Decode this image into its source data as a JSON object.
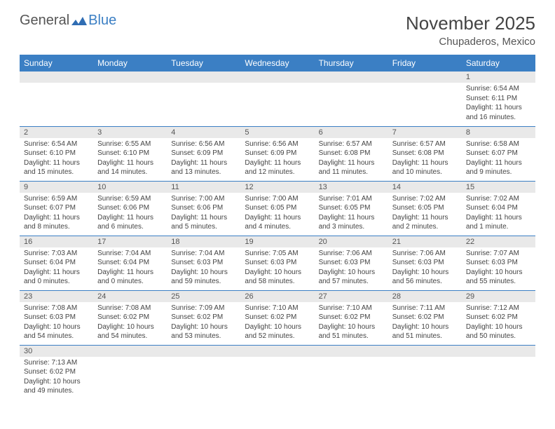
{
  "logo": {
    "general": "General",
    "blue": "Blue"
  },
  "title": "November 2025",
  "location": "Chupaderos, Mexico",
  "colors": {
    "header_bg": "#3b7fc4",
    "header_fg": "#ffffff",
    "daynum_bg": "#e9e9e9",
    "rule": "#3b7fc4",
    "text": "#444444"
  },
  "day_headers": [
    "Sunday",
    "Monday",
    "Tuesday",
    "Wednesday",
    "Thursday",
    "Friday",
    "Saturday"
  ],
  "weeks": [
    [
      {
        "n": "",
        "sr": "",
        "ss": "",
        "dl": ""
      },
      {
        "n": "",
        "sr": "",
        "ss": "",
        "dl": ""
      },
      {
        "n": "",
        "sr": "",
        "ss": "",
        "dl": ""
      },
      {
        "n": "",
        "sr": "",
        "ss": "",
        "dl": ""
      },
      {
        "n": "",
        "sr": "",
        "ss": "",
        "dl": ""
      },
      {
        "n": "",
        "sr": "",
        "ss": "",
        "dl": ""
      },
      {
        "n": "1",
        "sr": "Sunrise: 6:54 AM",
        "ss": "Sunset: 6:11 PM",
        "dl": "Daylight: 11 hours and 16 minutes."
      }
    ],
    [
      {
        "n": "2",
        "sr": "Sunrise: 6:54 AM",
        "ss": "Sunset: 6:10 PM",
        "dl": "Daylight: 11 hours and 15 minutes."
      },
      {
        "n": "3",
        "sr": "Sunrise: 6:55 AM",
        "ss": "Sunset: 6:10 PM",
        "dl": "Daylight: 11 hours and 14 minutes."
      },
      {
        "n": "4",
        "sr": "Sunrise: 6:56 AM",
        "ss": "Sunset: 6:09 PM",
        "dl": "Daylight: 11 hours and 13 minutes."
      },
      {
        "n": "5",
        "sr": "Sunrise: 6:56 AM",
        "ss": "Sunset: 6:09 PM",
        "dl": "Daylight: 11 hours and 12 minutes."
      },
      {
        "n": "6",
        "sr": "Sunrise: 6:57 AM",
        "ss": "Sunset: 6:08 PM",
        "dl": "Daylight: 11 hours and 11 minutes."
      },
      {
        "n": "7",
        "sr": "Sunrise: 6:57 AM",
        "ss": "Sunset: 6:08 PM",
        "dl": "Daylight: 11 hours and 10 minutes."
      },
      {
        "n": "8",
        "sr": "Sunrise: 6:58 AM",
        "ss": "Sunset: 6:07 PM",
        "dl": "Daylight: 11 hours and 9 minutes."
      }
    ],
    [
      {
        "n": "9",
        "sr": "Sunrise: 6:59 AM",
        "ss": "Sunset: 6:07 PM",
        "dl": "Daylight: 11 hours and 8 minutes."
      },
      {
        "n": "10",
        "sr": "Sunrise: 6:59 AM",
        "ss": "Sunset: 6:06 PM",
        "dl": "Daylight: 11 hours and 6 minutes."
      },
      {
        "n": "11",
        "sr": "Sunrise: 7:00 AM",
        "ss": "Sunset: 6:06 PM",
        "dl": "Daylight: 11 hours and 5 minutes."
      },
      {
        "n": "12",
        "sr": "Sunrise: 7:00 AM",
        "ss": "Sunset: 6:05 PM",
        "dl": "Daylight: 11 hours and 4 minutes."
      },
      {
        "n": "13",
        "sr": "Sunrise: 7:01 AM",
        "ss": "Sunset: 6:05 PM",
        "dl": "Daylight: 11 hours and 3 minutes."
      },
      {
        "n": "14",
        "sr": "Sunrise: 7:02 AM",
        "ss": "Sunset: 6:05 PM",
        "dl": "Daylight: 11 hours and 2 minutes."
      },
      {
        "n": "15",
        "sr": "Sunrise: 7:02 AM",
        "ss": "Sunset: 6:04 PM",
        "dl": "Daylight: 11 hours and 1 minute."
      }
    ],
    [
      {
        "n": "16",
        "sr": "Sunrise: 7:03 AM",
        "ss": "Sunset: 6:04 PM",
        "dl": "Daylight: 11 hours and 0 minutes."
      },
      {
        "n": "17",
        "sr": "Sunrise: 7:04 AM",
        "ss": "Sunset: 6:04 PM",
        "dl": "Daylight: 11 hours and 0 minutes."
      },
      {
        "n": "18",
        "sr": "Sunrise: 7:04 AM",
        "ss": "Sunset: 6:03 PM",
        "dl": "Daylight: 10 hours and 59 minutes."
      },
      {
        "n": "19",
        "sr": "Sunrise: 7:05 AM",
        "ss": "Sunset: 6:03 PM",
        "dl": "Daylight: 10 hours and 58 minutes."
      },
      {
        "n": "20",
        "sr": "Sunrise: 7:06 AM",
        "ss": "Sunset: 6:03 PM",
        "dl": "Daylight: 10 hours and 57 minutes."
      },
      {
        "n": "21",
        "sr": "Sunrise: 7:06 AM",
        "ss": "Sunset: 6:03 PM",
        "dl": "Daylight: 10 hours and 56 minutes."
      },
      {
        "n": "22",
        "sr": "Sunrise: 7:07 AM",
        "ss": "Sunset: 6:03 PM",
        "dl": "Daylight: 10 hours and 55 minutes."
      }
    ],
    [
      {
        "n": "23",
        "sr": "Sunrise: 7:08 AM",
        "ss": "Sunset: 6:03 PM",
        "dl": "Daylight: 10 hours and 54 minutes."
      },
      {
        "n": "24",
        "sr": "Sunrise: 7:08 AM",
        "ss": "Sunset: 6:02 PM",
        "dl": "Daylight: 10 hours and 54 minutes."
      },
      {
        "n": "25",
        "sr": "Sunrise: 7:09 AM",
        "ss": "Sunset: 6:02 PM",
        "dl": "Daylight: 10 hours and 53 minutes."
      },
      {
        "n": "26",
        "sr": "Sunrise: 7:10 AM",
        "ss": "Sunset: 6:02 PM",
        "dl": "Daylight: 10 hours and 52 minutes."
      },
      {
        "n": "27",
        "sr": "Sunrise: 7:10 AM",
        "ss": "Sunset: 6:02 PM",
        "dl": "Daylight: 10 hours and 51 minutes."
      },
      {
        "n": "28",
        "sr": "Sunrise: 7:11 AM",
        "ss": "Sunset: 6:02 PM",
        "dl": "Daylight: 10 hours and 51 minutes."
      },
      {
        "n": "29",
        "sr": "Sunrise: 7:12 AM",
        "ss": "Sunset: 6:02 PM",
        "dl": "Daylight: 10 hours and 50 minutes."
      }
    ],
    [
      {
        "n": "30",
        "sr": "Sunrise: 7:13 AM",
        "ss": "Sunset: 6:02 PM",
        "dl": "Daylight: 10 hours and 49 minutes."
      },
      {
        "n": "",
        "sr": "",
        "ss": "",
        "dl": ""
      },
      {
        "n": "",
        "sr": "",
        "ss": "",
        "dl": ""
      },
      {
        "n": "",
        "sr": "",
        "ss": "",
        "dl": ""
      },
      {
        "n": "",
        "sr": "",
        "ss": "",
        "dl": ""
      },
      {
        "n": "",
        "sr": "",
        "ss": "",
        "dl": ""
      },
      {
        "n": "",
        "sr": "",
        "ss": "",
        "dl": ""
      }
    ]
  ]
}
